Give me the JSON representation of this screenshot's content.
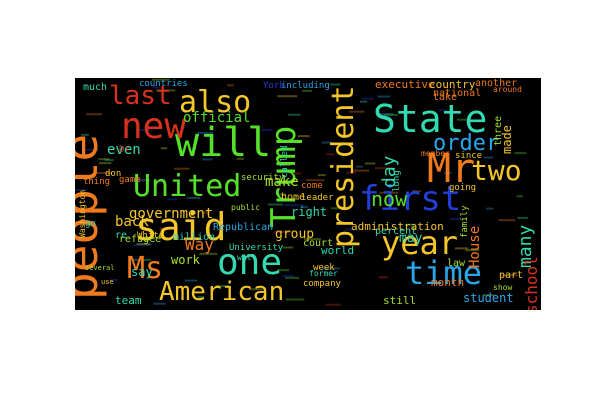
{
  "palette": {
    "blue": "#1f3fd8",
    "lightblue": "#2aa6e8",
    "teal": "#33d9b0",
    "green": "#55e02a",
    "yellow": "#f4c62a",
    "orange": "#f07a1e",
    "red": "#d8321e",
    "lime": "#a8e02a"
  },
  "words": [
    {
      "text": "people"
    },
    {
      "text": "said"
    },
    {
      "text": "will"
    },
    {
      "text": "United"
    },
    {
      "text": "new"
    },
    {
      "text": "also"
    },
    {
      "text": "last"
    },
    {
      "text": "Trump"
    },
    {
      "text": "president"
    },
    {
      "text": "State"
    },
    {
      "text": "Mr"
    },
    {
      "text": "first"
    },
    {
      "text": "year"
    },
    {
      "text": "time"
    },
    {
      "text": "one"
    },
    {
      "text": "Ms"
    },
    {
      "text": "American"
    },
    {
      "text": "two"
    },
    {
      "text": "order"
    },
    {
      "text": "day"
    },
    {
      "text": "now"
    },
    {
      "text": "many"
    },
    {
      "text": "school"
    },
    {
      "text": "made"
    },
    {
      "text": "official"
    },
    {
      "text": "government"
    },
    {
      "text": "make"
    },
    {
      "text": "even"
    },
    {
      "text": "back"
    },
    {
      "text": "Way"
    },
    {
      "text": "work"
    },
    {
      "text": "say"
    },
    {
      "text": "world"
    },
    {
      "text": "group"
    },
    {
      "text": "executive"
    },
    {
      "text": "country"
    },
    {
      "text": "including"
    },
    {
      "text": "York"
    },
    {
      "text": "another"
    },
    {
      "text": "much"
    },
    {
      "text": "countries"
    },
    {
      "text": "right"
    },
    {
      "text": "million"
    },
    {
      "text": "House"
    },
    {
      "text": "may"
    },
    {
      "text": "percent"
    },
    {
      "text": "national"
    },
    {
      "text": "refugee"
    },
    {
      "text": "team"
    },
    {
      "text": "company"
    },
    {
      "text": "student"
    },
    {
      "text": "month"
    },
    {
      "text": "still"
    },
    {
      "text": "administration"
    },
    {
      "text": "law"
    },
    {
      "text": "White"
    },
    {
      "text": "game"
    },
    {
      "text": "Republican"
    },
    {
      "text": "court"
    },
    {
      "text": "member"
    },
    {
      "text": "going"
    },
    {
      "text": "since"
    },
    {
      "text": "family"
    },
    {
      "text": "take"
    },
    {
      "text": "three"
    },
    {
      "text": "part"
    },
    {
      "text": "week"
    },
    {
      "text": "don"
    },
    {
      "text": "Dr"
    },
    {
      "text": "thing"
    },
    {
      "text": "public"
    },
    {
      "text": "come"
    },
    {
      "text": "leader"
    },
    {
      "text": "home"
    },
    {
      "text": "security"
    },
    {
      "text": "called"
    },
    {
      "text": "University"
    },
    {
      "text": "long"
    },
    {
      "text": "Washington"
    },
    {
      "text": "go"
    },
    {
      "text": "re"
    },
    {
      "text": "several"
    },
    {
      "text": "use"
    },
    {
      "text": "well"
    },
    {
      "text": "former"
    },
    {
      "text": "show"
    },
    {
      "text": "around"
    }
  ]
}
